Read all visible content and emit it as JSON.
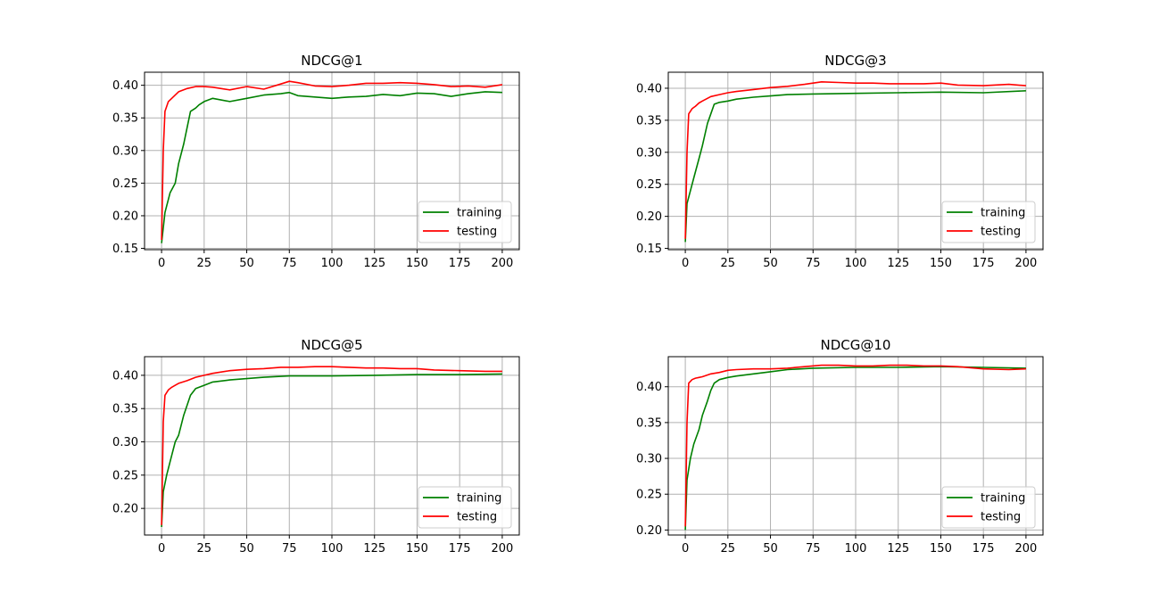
{
  "chart_data": [
    {
      "type": "line",
      "title": "NDCG@1",
      "xlim": [
        -10,
        210
      ],
      "ylim": [
        0.148,
        0.42
      ],
      "xticks": [
        0,
        25,
        50,
        75,
        100,
        125,
        150,
        175,
        200
      ],
      "yticks": [
        0.15,
        0.2,
        0.25,
        0.3,
        0.35,
        0.4
      ],
      "grid": true,
      "legend": "lower-right",
      "series": [
        {
          "name": "training",
          "color": "#008000",
          "x": [
            0,
            2,
            5,
            8,
            10,
            13,
            15,
            17,
            20,
            22,
            25,
            30,
            40,
            50,
            60,
            70,
            75,
            80,
            90,
            100,
            110,
            120,
            130,
            140,
            150,
            160,
            170,
            180,
            190,
            200
          ],
          "y": [
            0.158,
            0.205,
            0.235,
            0.25,
            0.28,
            0.31,
            0.335,
            0.36,
            0.365,
            0.37,
            0.375,
            0.38,
            0.375,
            0.38,
            0.385,
            0.387,
            0.389,
            0.384,
            0.382,
            0.38,
            0.382,
            0.383,
            0.386,
            0.384,
            0.388,
            0.387,
            0.383,
            0.387,
            0.39,
            0.389
          ]
        },
        {
          "name": "testing",
          "color": "#ff0000",
          "x": [
            0,
            1,
            2,
            4,
            6,
            8,
            10,
            15,
            20,
            25,
            30,
            40,
            50,
            60,
            70,
            75,
            80,
            90,
            100,
            110,
            120,
            130,
            140,
            150,
            160,
            170,
            180,
            190,
            200
          ],
          "y": [
            0.163,
            0.3,
            0.36,
            0.375,
            0.38,
            0.385,
            0.39,
            0.395,
            0.398,
            0.398,
            0.397,
            0.393,
            0.398,
            0.394,
            0.402,
            0.406,
            0.404,
            0.399,
            0.398,
            0.4,
            0.403,
            0.403,
            0.404,
            0.403,
            0.401,
            0.398,
            0.399,
            0.397,
            0.401
          ]
        }
      ]
    },
    {
      "type": "line",
      "title": "NDCG@3",
      "xlim": [
        -10,
        210
      ],
      "ylim": [
        0.148,
        0.425
      ],
      "xticks": [
        0,
        25,
        50,
        75,
        100,
        125,
        150,
        175,
        200
      ],
      "yticks": [
        0.15,
        0.2,
        0.25,
        0.3,
        0.35,
        0.4
      ],
      "grid": true,
      "legend": "lower-right",
      "series": [
        {
          "name": "training",
          "color": "#008000",
          "x": [
            0,
            1,
            3,
            5,
            8,
            10,
            13,
            15,
            17,
            20,
            25,
            30,
            40,
            50,
            60,
            75,
            100,
            125,
            150,
            175,
            200
          ],
          "y": [
            0.16,
            0.22,
            0.24,
            0.26,
            0.29,
            0.31,
            0.345,
            0.36,
            0.375,
            0.378,
            0.38,
            0.383,
            0.386,
            0.388,
            0.39,
            0.391,
            0.392,
            0.393,
            0.394,
            0.393,
            0.396
          ]
        },
        {
          "name": "testing",
          "color": "#ff0000",
          "x": [
            0,
            1,
            2,
            4,
            6,
            8,
            10,
            15,
            20,
            25,
            30,
            40,
            50,
            60,
            70,
            80,
            90,
            100,
            110,
            120,
            130,
            140,
            150,
            160,
            175,
            190,
            200
          ],
          "y": [
            0.165,
            0.3,
            0.36,
            0.368,
            0.372,
            0.377,
            0.38,
            0.387,
            0.39,
            0.393,
            0.395,
            0.398,
            0.401,
            0.403,
            0.406,
            0.41,
            0.409,
            0.408,
            0.408,
            0.407,
            0.407,
            0.407,
            0.408,
            0.405,
            0.404,
            0.406,
            0.404
          ]
        }
      ]
    },
    {
      "type": "line",
      "title": "NDCG@5",
      "xlim": [
        -10,
        210
      ],
      "ylim": [
        0.16,
        0.428
      ],
      "xticks": [
        0,
        25,
        50,
        75,
        100,
        125,
        150,
        175,
        200
      ],
      "yticks": [
        0.2,
        0.25,
        0.3,
        0.35,
        0.4
      ],
      "grid": true,
      "legend": "lower-right",
      "series": [
        {
          "name": "training",
          "color": "#008000",
          "x": [
            0,
            1,
            3,
            5,
            8,
            10,
            13,
            15,
            17,
            20,
            25,
            30,
            40,
            50,
            60,
            75,
            100,
            125,
            150,
            175,
            200
          ],
          "y": [
            0.172,
            0.225,
            0.25,
            0.27,
            0.3,
            0.31,
            0.34,
            0.355,
            0.37,
            0.38,
            0.385,
            0.39,
            0.393,
            0.395,
            0.397,
            0.399,
            0.399,
            0.4,
            0.401,
            0.401,
            0.402
          ]
        },
        {
          "name": "testing",
          "color": "#ff0000",
          "x": [
            0,
            1,
            2,
            4,
            6,
            8,
            10,
            15,
            20,
            25,
            30,
            40,
            50,
            60,
            70,
            80,
            90,
            100,
            110,
            120,
            130,
            140,
            150,
            160,
            175,
            190,
            200
          ],
          "y": [
            0.175,
            0.33,
            0.37,
            0.378,
            0.382,
            0.385,
            0.388,
            0.392,
            0.397,
            0.4,
            0.403,
            0.407,
            0.409,
            0.41,
            0.412,
            0.412,
            0.413,
            0.413,
            0.412,
            0.411,
            0.411,
            0.41,
            0.41,
            0.408,
            0.407,
            0.406,
            0.406
          ]
        }
      ]
    },
    {
      "type": "line",
      "title": "NDCG@10",
      "xlim": [
        -10,
        210
      ],
      "ylim": [
        0.193,
        0.442
      ],
      "xticks": [
        0,
        25,
        50,
        75,
        100,
        125,
        150,
        175,
        200
      ],
      "yticks": [
        0.2,
        0.25,
        0.3,
        0.35,
        0.4
      ],
      "grid": true,
      "legend": "lower-right",
      "series": [
        {
          "name": "training",
          "color": "#008000",
          "x": [
            0,
            1,
            3,
            5,
            8,
            10,
            13,
            15,
            17,
            20,
            25,
            30,
            40,
            50,
            60,
            75,
            100,
            125,
            150,
            175,
            200
          ],
          "y": [
            0.2,
            0.27,
            0.3,
            0.32,
            0.34,
            0.36,
            0.38,
            0.395,
            0.405,
            0.41,
            0.413,
            0.415,
            0.418,
            0.421,
            0.424,
            0.426,
            0.427,
            0.427,
            0.428,
            0.427,
            0.426
          ]
        },
        {
          "name": "testing",
          "color": "#ff0000",
          "x": [
            0,
            1,
            2,
            4,
            6,
            8,
            10,
            15,
            20,
            25,
            30,
            40,
            50,
            60,
            70,
            80,
            90,
            100,
            110,
            120,
            130,
            140,
            150,
            160,
            175,
            190,
            200
          ],
          "y": [
            0.205,
            0.35,
            0.405,
            0.41,
            0.412,
            0.413,
            0.414,
            0.418,
            0.42,
            0.423,
            0.424,
            0.425,
            0.425,
            0.426,
            0.428,
            0.43,
            0.43,
            0.429,
            0.429,
            0.43,
            0.43,
            0.429,
            0.429,
            0.428,
            0.425,
            0.424,
            0.425
          ]
        }
      ]
    }
  ]
}
